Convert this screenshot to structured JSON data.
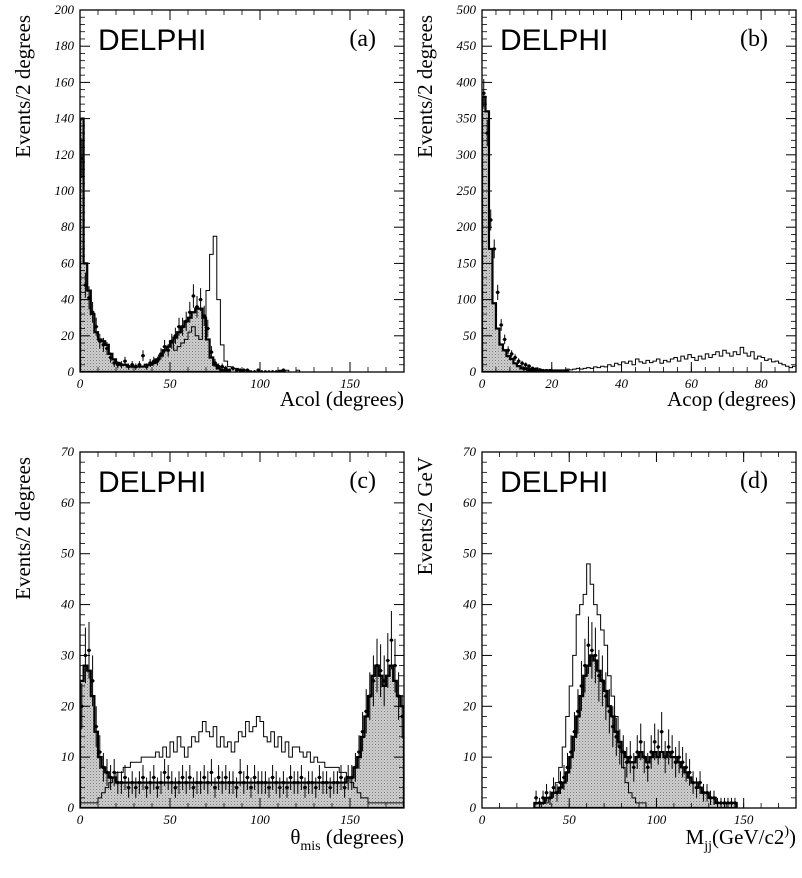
{
  "figure": {
    "panels": [
      {
        "experiment": "DELPHI",
        "tag": "(a)"
      },
      {
        "experiment": "DELPHI",
        "tag": "(b)"
      },
      {
        "experiment": "DELPHI",
        "tag": "(c)"
      },
      {
        "experiment": "DELPHI",
        "tag": "(d)"
      }
    ]
  },
  "chart_data": [
    {
      "type": "bar",
      "tag": "(a)",
      "ylabel": "Events/2 degrees",
      "xlabel": "Acol (degrees)",
      "xlim": [
        0,
        180
      ],
      "ylim": [
        0,
        200
      ],
      "xticks": [
        0,
        50,
        100,
        150
      ],
      "yticks": [
        0,
        20,
        40,
        60,
        80,
        100,
        120,
        140,
        160,
        180,
        200
      ],
      "bin_width": 2,
      "series": [
        {
          "style": "filled",
          "x0": 0,
          "values": [
            140,
            60,
            45,
            32,
            22,
            18,
            17,
            15,
            10,
            7,
            5,
            4,
            4,
            3,
            3,
            3,
            3,
            3,
            4,
            4,
            5,
            7,
            9,
            12,
            14,
            17,
            19,
            22,
            25,
            28,
            30,
            33,
            35,
            35,
            30,
            18,
            8,
            4,
            2,
            1,
            1
          ]
        },
        {
          "style": "outline",
          "x0": 0,
          "values": [
            140,
            60,
            45,
            32,
            22,
            18,
            17,
            15,
            10,
            7,
            5,
            4,
            4,
            3,
            3,
            3,
            3,
            3,
            4,
            4,
            5,
            7,
            9,
            12,
            14,
            16,
            12,
            14,
            16,
            18,
            22,
            25,
            20,
            18,
            30,
            45,
            65,
            75,
            40,
            15,
            6,
            3,
            2,
            2,
            1,
            1,
            1,
            0,
            0,
            0,
            0,
            0,
            0,
            0,
            0,
            1,
            0,
            1,
            0,
            0,
            1
          ]
        },
        {
          "style": "points",
          "x0": 0,
          "values": [
            118,
            48,
            41,
            33,
            25,
            17,
            15,
            13,
            8,
            5,
            4,
            4,
            6,
            3,
            4,
            3,
            4,
            9,
            3,
            5,
            6,
            6,
            10,
            14,
            12,
            17,
            20,
            25,
            25,
            28,
            33,
            42,
            36,
            40,
            31,
            24,
            11,
            5,
            3,
            3,
            2,
            1,
            2,
            1,
            1,
            1,
            1,
            0,
            0,
            1,
            0,
            0,
            0,
            0,
            0,
            0,
            1
          ]
        }
      ]
    },
    {
      "type": "bar",
      "tag": "(b)",
      "ylabel": "Events/2 degrees",
      "xlabel": "Acop (degrees)",
      "xlim": [
        0,
        90
      ],
      "ylim": [
        0,
        500
      ],
      "xticks": [
        0,
        20,
        40,
        60,
        80
      ],
      "yticks": [
        0,
        50,
        100,
        150,
        200,
        250,
        300,
        350,
        400,
        450,
        500
      ],
      "bin_width": 1,
      "series": [
        {
          "style": "filled",
          "x0": 0,
          "values": [
            380,
            360,
            170,
            95,
            60,
            38,
            30,
            22,
            18,
            12,
            8,
            5,
            4,
            3,
            2,
            2,
            1,
            1,
            1,
            1,
            1,
            1
          ]
        },
        {
          "style": "outline",
          "x0": 0,
          "values": [
            380,
            360,
            170,
            95,
            60,
            38,
            30,
            22,
            18,
            12,
            9,
            7,
            6,
            5,
            5,
            4,
            4,
            3,
            3,
            3,
            3,
            3,
            3,
            3,
            4,
            3,
            4,
            5,
            4,
            5,
            6,
            5,
            7,
            6,
            8,
            7,
            10,
            8,
            12,
            10,
            14,
            12,
            15,
            10,
            18,
            14,
            12,
            16,
            13,
            15,
            18,
            12,
            16,
            14,
            18,
            20,
            15,
            22,
            18,
            24,
            20,
            16,
            22,
            18,
            25,
            20,
            24,
            28,
            22,
            30,
            26,
            22,
            28,
            24,
            34,
            26,
            22,
            28,
            18,
            22,
            20,
            16,
            18,
            14,
            15,
            12,
            10,
            8,
            6,
            8
          ]
        },
        {
          "style": "points",
          "x0": 0,
          "values": [
            385,
            330,
            210,
            170,
            110,
            65,
            45,
            30,
            25,
            20,
            15,
            12,
            10,
            8,
            5,
            4,
            3,
            2,
            2,
            2,
            1,
            1,
            1,
            1,
            1
          ]
        }
      ]
    },
    {
      "type": "bar",
      "tag": "(c)",
      "ylabel": "Events/2 degrees",
      "xlabel": "θmis (degrees)",
      "xlim": [
        0,
        180
      ],
      "ylim": [
        0,
        70
      ],
      "xticks": [
        0,
        50,
        100,
        150
      ],
      "yticks": [
        0,
        10,
        20,
        30,
        40,
        50,
        60,
        70
      ],
      "bin_width": 2,
      "series": [
        {
          "style": "filled",
          "x0": 0,
          "values": [
            25,
            28,
            27,
            22,
            15,
            10,
            8,
            7,
            6,
            6,
            5,
            5,
            5,
            5,
            5,
            5,
            5,
            5,
            5,
            5,
            5,
            5,
            5,
            5,
            5,
            5,
            5,
            5,
            5,
            5,
            5,
            5,
            5,
            5,
            5,
            5,
            5,
            5,
            5,
            5,
            5,
            5,
            5,
            5,
            5,
            5,
            5,
            5,
            5,
            5,
            5,
            5,
            5,
            5,
            5,
            5,
            5,
            5,
            5,
            5,
            5,
            5,
            5,
            5,
            5,
            5,
            5,
            5,
            5,
            5,
            5,
            5,
            5,
            5,
            6,
            6,
            8,
            10,
            14,
            18,
            22,
            26,
            28,
            26,
            24,
            26,
            28,
            25,
            22,
            20
          ]
        },
        {
          "style": "outline",
          "x0": 0,
          "values": [
            1,
            1,
            1,
            1,
            1,
            2,
            3,
            4,
            5,
            6,
            7,
            7,
            8,
            8,
            9,
            9,
            9,
            10,
            10,
            10,
            10,
            11,
            10,
            12,
            10,
            13,
            11,
            14,
            12,
            10,
            12,
            14,
            13,
            15,
            17,
            15,
            14,
            16,
            12,
            14,
            12,
            13,
            11,
            13,
            15,
            14,
            17,
            15,
            16,
            18,
            17,
            14,
            13,
            15,
            12,
            14,
            11,
            13,
            10,
            12,
            12,
            11,
            10,
            11,
            9,
            10,
            9,
            9,
            8,
            8,
            8,
            8,
            7,
            7,
            6,
            5,
            4,
            3,
            2,
            2,
            1,
            1,
            1,
            1,
            1,
            1,
            1,
            1,
            1,
            1
          ]
        },
        {
          "style": "points",
          "x0": 0,
          "values": [
            20,
            30,
            31,
            25,
            16,
            11,
            8,
            7,
            6,
            7,
            5,
            5,
            6,
            4,
            5,
            4,
            5,
            6,
            4,
            5,
            6,
            4,
            5,
            7,
            6,
            5,
            4,
            5,
            6,
            5,
            6,
            4,
            5,
            5,
            6,
            5,
            7,
            4,
            6,
            5,
            6,
            5,
            5,
            4,
            7,
            5,
            6,
            4,
            6,
            5,
            5,
            5,
            4,
            6,
            5,
            4,
            5,
            4,
            6,
            5,
            5,
            6,
            4,
            5,
            5,
            4,
            6,
            5,
            5,
            4,
            5,
            5,
            6,
            4,
            6,
            6,
            8,
            11,
            15,
            19,
            22,
            25,
            28,
            27,
            25,
            29,
            33,
            28,
            22,
            18
          ]
        }
      ]
    },
    {
      "type": "bar",
      "tag": "(d)",
      "ylabel": "Events/2 GeV",
      "xlabel": "Mjj(GeV/c2)",
      "xlim": [
        0,
        180
      ],
      "ylim": [
        0,
        70
      ],
      "xticks": [
        0,
        50,
        100,
        150
      ],
      "yticks": [
        0,
        10,
        20,
        30,
        40,
        50,
        60,
        70
      ],
      "bin_width": 2,
      "series": [
        {
          "style": "filled",
          "x0": 30,
          "values": [
            1,
            1,
            1,
            2,
            2,
            3,
            3,
            4,
            5,
            7,
            10,
            14,
            18,
            22,
            26,
            28,
            30,
            29,
            27,
            25,
            23,
            20,
            18,
            15,
            13,
            11,
            10,
            9,
            9,
            10,
            11,
            10,
            9,
            10,
            11,
            10,
            11,
            10,
            11,
            10,
            10,
            9,
            8,
            7,
            6,
            5,
            5,
            4,
            3,
            3,
            2,
            2,
            1,
            1,
            1,
            1,
            1,
            1
          ]
        },
        {
          "style": "outline",
          "x0": 30,
          "values": [
            0,
            0,
            1,
            1,
            2,
            3,
            5,
            8,
            12,
            18,
            24,
            30,
            38,
            40,
            42,
            48,
            44,
            40,
            38,
            35,
            32,
            26,
            22,
            18,
            12,
            8,
            5,
            3,
            2,
            1,
            1,
            1,
            0,
            0,
            0,
            0,
            0,
            0,
            0,
            0,
            0,
            0,
            0,
            0,
            0,
            0,
            0,
            0,
            0,
            0,
            0,
            0,
            0,
            0,
            0,
            0,
            0,
            0
          ]
        },
        {
          "style": "points",
          "x0": 30,
          "values": [
            2,
            1,
            2,
            3,
            2,
            4,
            3,
            5,
            6,
            8,
            11,
            15,
            19,
            24,
            28,
            32,
            31,
            30,
            26,
            25,
            22,
            19,
            16,
            14,
            12,
            11,
            9,
            10,
            8,
            11,
            13,
            10,
            8,
            11,
            13,
            12,
            15,
            10,
            12,
            11,
            9,
            10,
            9,
            8,
            7,
            5,
            4,
            5,
            3,
            3,
            2,
            2,
            1,
            1,
            1,
            1,
            1,
            1
          ]
        }
      ]
    }
  ]
}
